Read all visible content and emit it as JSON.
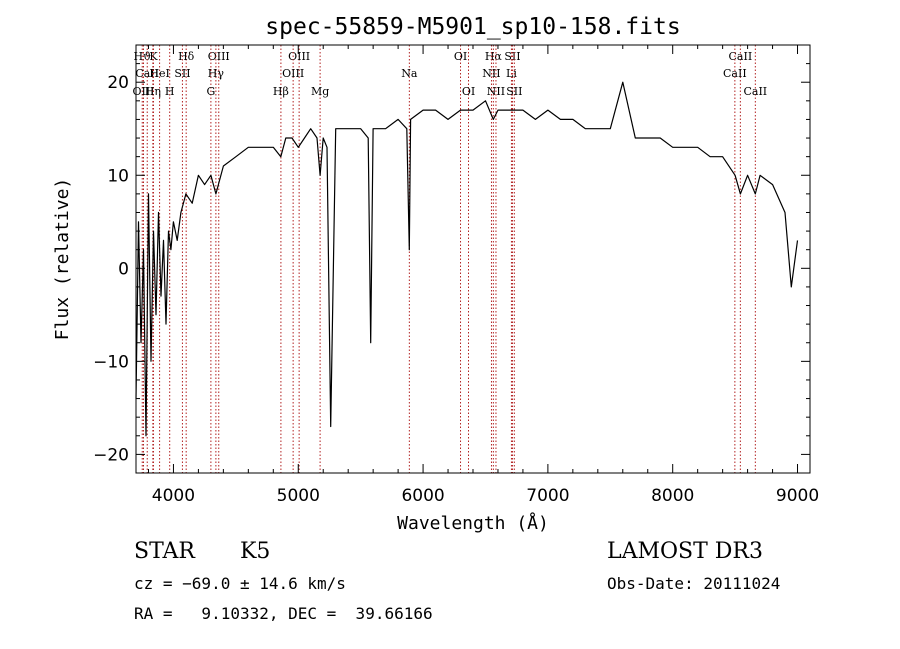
{
  "chart_data": {
    "type": "line",
    "title": "spec-55859-M5901_sp10-158.fits",
    "xlabel": "Wavelength (Å)",
    "ylabel": "Flux (relative)",
    "xlim": [
      3700,
      9100
    ],
    "ylim": [
      -22,
      24
    ],
    "xticks": [
      4000,
      5000,
      6000,
      7000,
      8000,
      9000
    ],
    "yticks": [
      -20,
      -10,
      0,
      10,
      20
    ],
    "tick_labels": {
      "x": [
        "4000",
        "5000",
        "6000",
        "7000",
        "8000",
        "9000"
      ],
      "y": [
        "−20",
        "−10",
        "0",
        "10",
        "20"
      ]
    },
    "grid": false,
    "line_color": "#000000",
    "marker_color": "#b22222",
    "series": [
      {
        "name": "",
        "x": [
          3700,
          3720,
          3740,
          3760,
          3780,
          3800,
          3820,
          3840,
          3860,
          3880,
          3900,
          3920,
          3940,
          3960,
          3980,
          4000,
          4030,
          4060,
          4100,
          4150,
          4200,
          4250,
          4300,
          4340,
          4400,
          4500,
          4600,
          4700,
          4800,
          4860,
          4900,
          4950,
          5000,
          5050,
          5100,
          5150,
          5175,
          5200,
          5230,
          5260,
          5300,
          5400,
          5500,
          5560,
          5580,
          5600,
          5700,
          5800,
          5870,
          5890,
          5900,
          6000,
          6100,
          6200,
          6300,
          6400,
          6500,
          6563,
          6600,
          6700,
          6800,
          6900,
          7000,
          7100,
          7200,
          7300,
          7400,
          7500,
          7600,
          7700,
          7800,
          7900,
          8000,
          8100,
          8200,
          8300,
          8400,
          8500,
          8542,
          8600,
          8662,
          8700,
          8800,
          8900,
          8950,
          9000
        ],
        "y": [
          -14,
          5,
          -8,
          2,
          -18,
          8,
          -10,
          4,
          -5,
          6,
          -3,
          3,
          -6,
          4,
          2,
          5,
          3,
          6,
          8,
          7,
          10,
          9,
          10,
          8,
          11,
          12,
          13,
          13,
          13,
          12,
          14,
          14,
          13,
          14,
          15,
          14,
          10,
          14,
          13,
          -17,
          15,
          15,
          15,
          14,
          -8,
          15,
          15,
          16,
          15,
          2,
          16,
          17,
          17,
          16,
          17,
          17,
          18,
          16,
          17,
          17,
          17,
          16,
          17,
          16,
          16,
          15,
          15,
          15,
          20,
          14,
          14,
          14,
          13,
          13,
          13,
          12,
          12,
          10,
          8,
          10,
          8,
          10,
          9,
          6,
          -2,
          3
        ]
      }
    ],
    "lines": [
      {
        "label": "Hϑ",
        "x": 3750,
        "row": 0
      },
      {
        "label": "CaII",
        "x": 3790,
        "row": 1
      },
      {
        "label": "OIII",
        "x": 3760,
        "row": 2
      },
      {
        "label": "K",
        "x": 3840,
        "row": 0
      },
      {
        "label": "HeI",
        "x": 3889,
        "row": 1
      },
      {
        "label": "Hη",
        "x": 3835,
        "row": 2
      },
      {
        "label": "H",
        "x": 3970,
        "row": 2
      },
      {
        "label": "Hδ",
        "x": 4102,
        "row": 0
      },
      {
        "label": "SII",
        "x": 4072,
        "row": 1
      },
      {
        "label": "OIII",
        "x": 4363,
        "row": 0
      },
      {
        "label": "Hγ",
        "x": 4340,
        "row": 1
      },
      {
        "label": "G",
        "x": 4300,
        "row": 2
      },
      {
        "label": "OIII",
        "x": 5007,
        "row": 0
      },
      {
        "label": "OIII",
        "x": 4959,
        "row": 1
      },
      {
        "label": "Hβ",
        "x": 4861,
        "row": 2
      },
      {
        "label": "Mg",
        "x": 5175,
        "row": 2
      },
      {
        "label": "Na",
        "x": 5890,
        "row": 1
      },
      {
        "label": "OI",
        "x": 6300,
        "row": 0
      },
      {
        "label": "OI",
        "x": 6364,
        "row": 2
      },
      {
        "label": "Hα",
        "x": 6563,
        "row": 0
      },
      {
        "label": "SII",
        "x": 6716,
        "row": 0
      },
      {
        "label": "NII",
        "x": 6548,
        "row": 1
      },
      {
        "label": "Li",
        "x": 6708,
        "row": 1
      },
      {
        "label": "NII",
        "x": 6584,
        "row": 2
      },
      {
        "label": "SII",
        "x": 6731,
        "row": 2
      },
      {
        "label": "CaII",
        "x": 8542,
        "row": 0
      },
      {
        "label": "CaII",
        "x": 8498,
        "row": 1
      },
      {
        "label": "CaII",
        "x": 8662,
        "row": 2
      }
    ]
  },
  "info": {
    "object_class": "STAR",
    "subclass": "K5",
    "survey": "LAMOST DR3",
    "redshift": "cz = −69.0 ± 14.6 km/s",
    "obs_date": "Obs-Date: 20111024",
    "coords": "RA =   9.10332, DEC =  39.66166"
  }
}
